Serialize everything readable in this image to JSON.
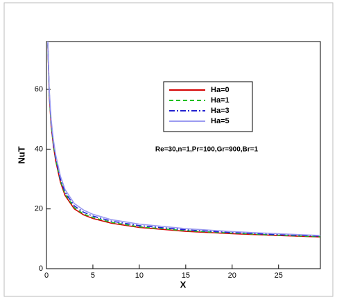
{
  "chart_data": {
    "type": "line",
    "xlabel": "X",
    "ylabel": "NuT",
    "annotation": "Re=30,n=1,Pr=100,Gr=900,Br=1",
    "x": [
      0.15,
      0.3,
      0.5,
      0.75,
      1,
      1.5,
      2,
      3,
      4,
      5,
      7,
      10,
      15,
      20,
      25,
      29.5
    ],
    "series": [
      {
        "name": "Ha=0",
        "color": "#d40000",
        "dash": "solid",
        "values": [
          75,
          58,
          48,
          41,
          36,
          29,
          24.5,
          20,
          18,
          16.8,
          15.2,
          13.8,
          12.5,
          11.7,
          11.1,
          10.6
        ]
      },
      {
        "name": "Ha=1",
        "color": "#1fbf1f",
        "dash": "dashed",
        "values": [
          75,
          58.5,
          48.5,
          41.5,
          36.5,
          29.5,
          25,
          20.4,
          18.3,
          17.1,
          15.5,
          14,
          12.7,
          11.9,
          11.2,
          10.7
        ]
      },
      {
        "name": "Ha=3",
        "color": "#2020d0",
        "dash": "dashdot",
        "values": [
          75.5,
          59,
          49,
          42,
          37,
          30,
          25.6,
          21,
          18.9,
          17.6,
          15.9,
          14.4,
          13,
          12.1,
          11.4,
          10.9
        ]
      },
      {
        "name": "Ha=5",
        "color": "#9a9af0",
        "dash": "solid",
        "values": [
          76,
          60,
          50,
          43,
          38,
          31,
          26.5,
          21.8,
          19.6,
          18.2,
          16.4,
          14.9,
          13.4,
          12.4,
          11.7,
          11.1
        ]
      }
    ],
    "xlim": [
      0,
      29.5
    ],
    "xticks": [
      0,
      5,
      10,
      15,
      20,
      25
    ],
    "ylim": [
      0,
      76
    ],
    "yticks": [
      0,
      20,
      40,
      60
    ]
  }
}
